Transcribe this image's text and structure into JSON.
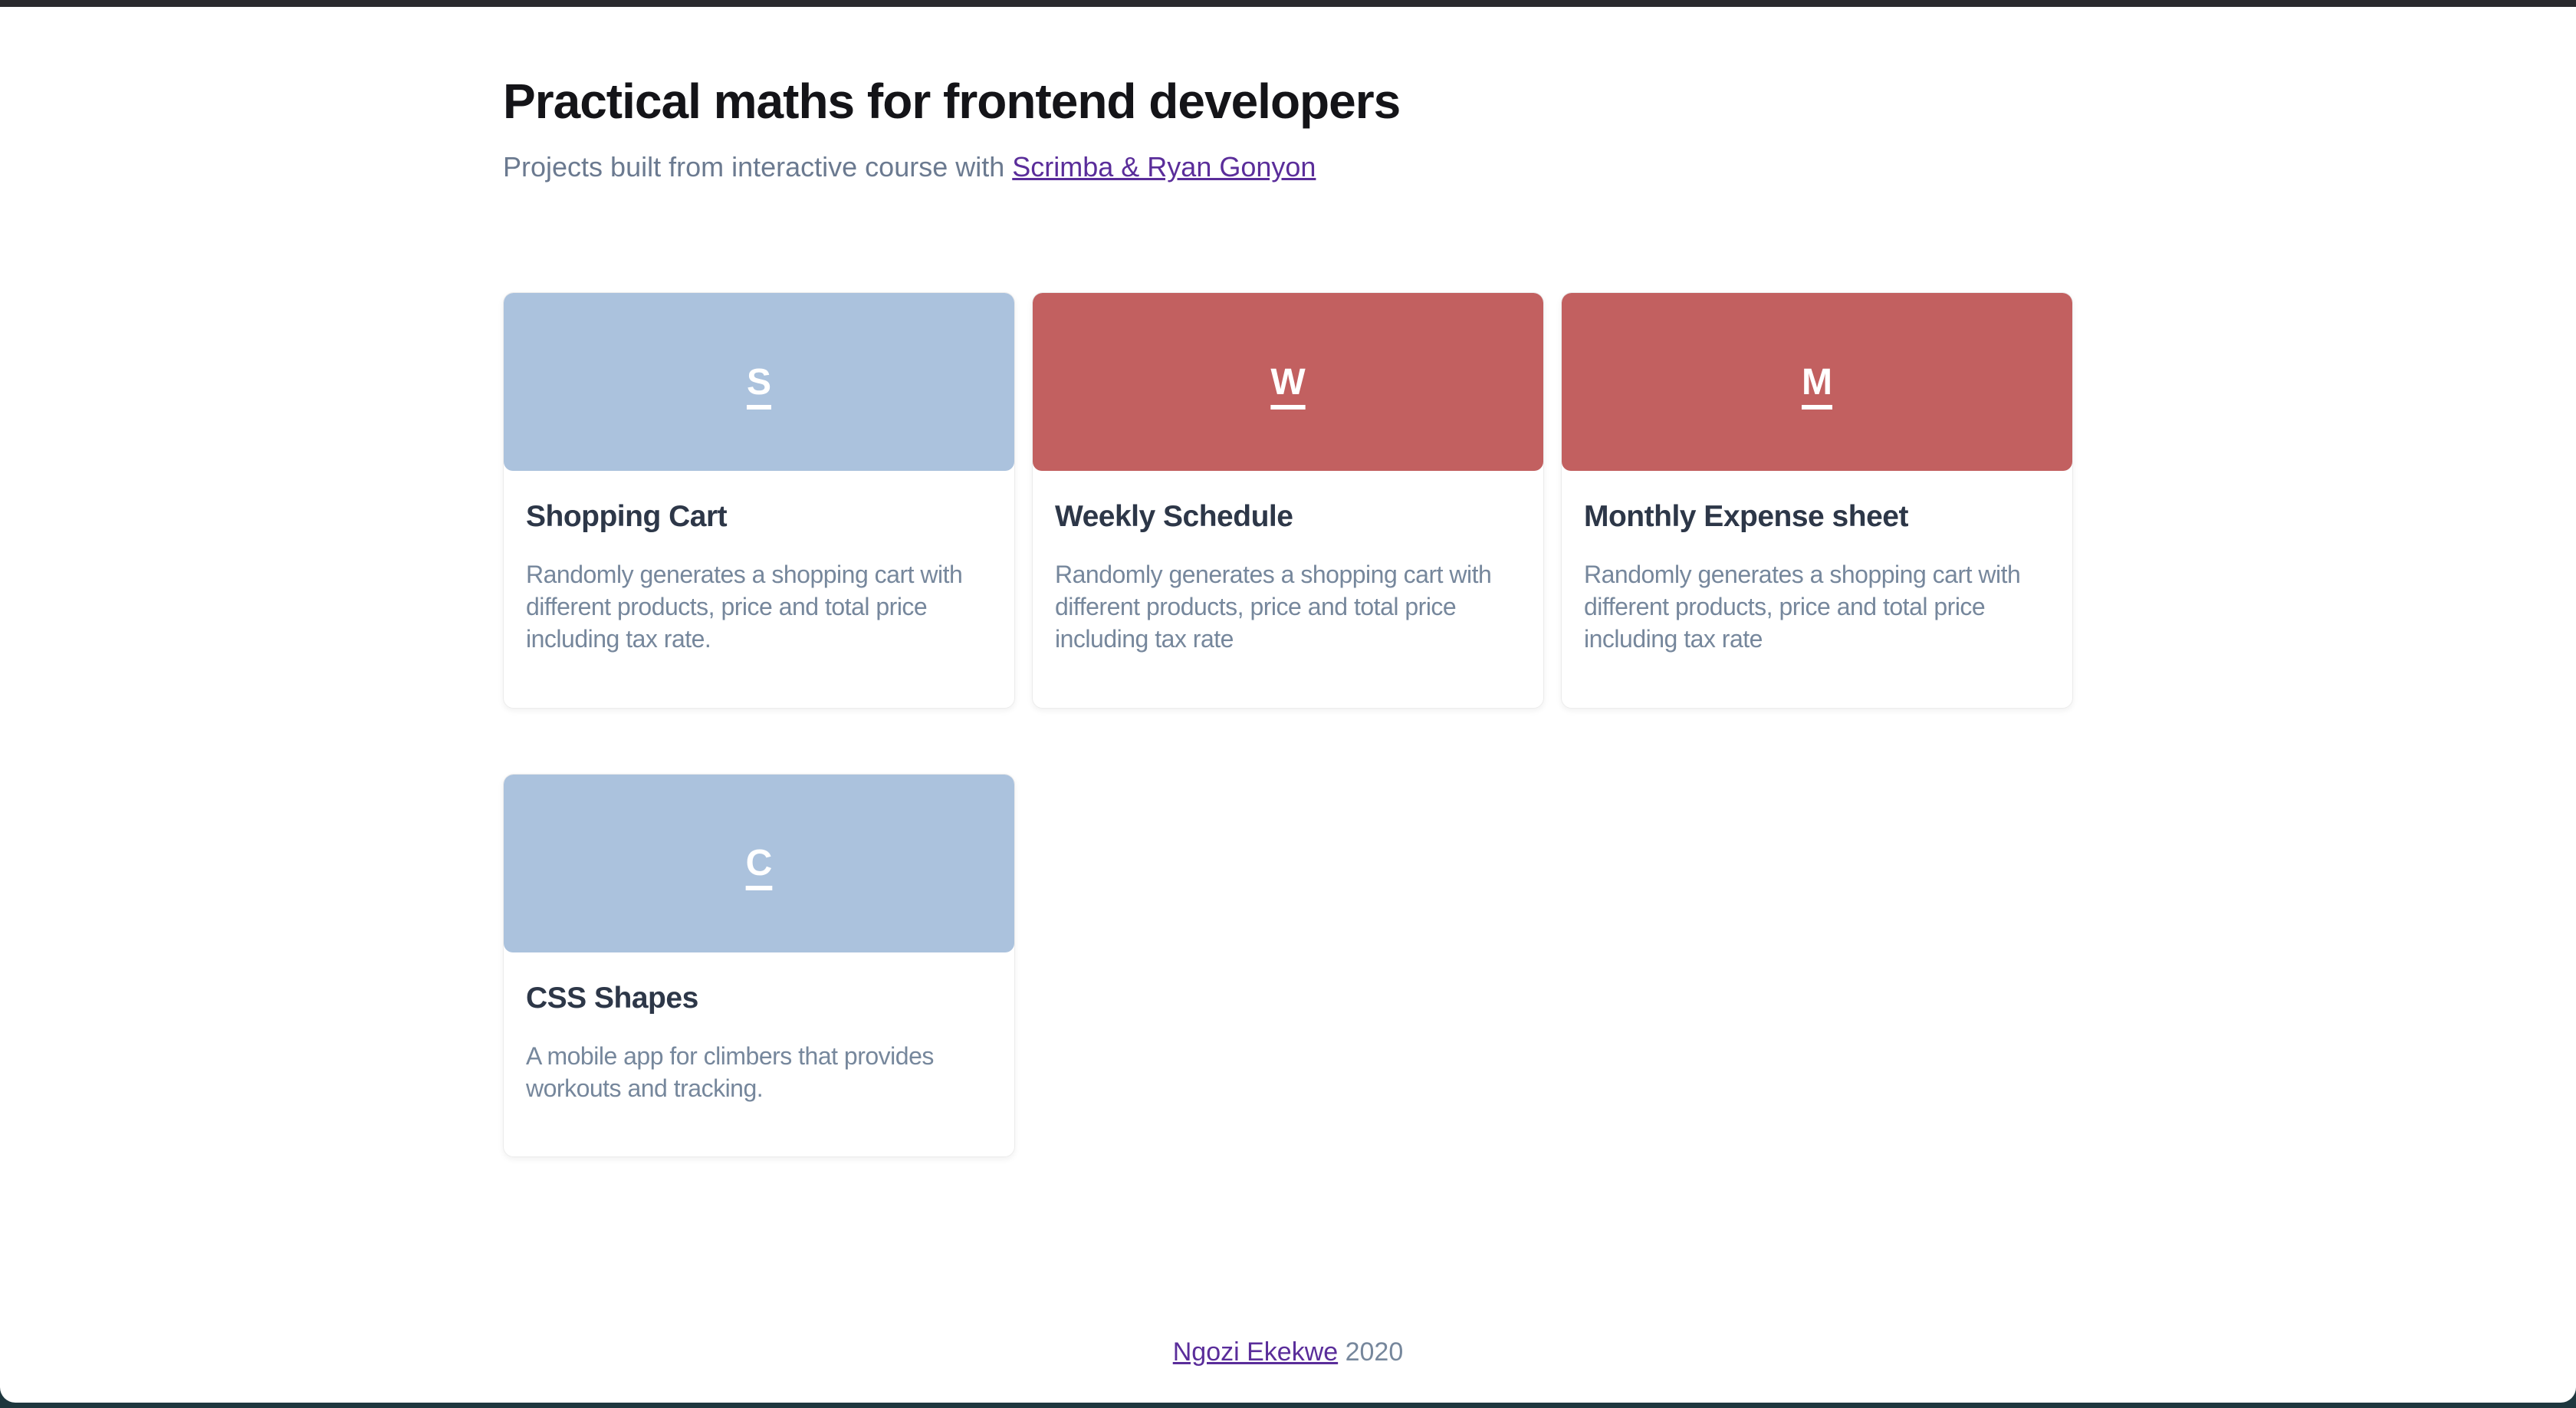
{
  "header": {
    "title": "Practical maths for frontend developers",
    "subtitle_prefix": "Projects built from interactive course with ",
    "subtitle_link_label": "Scrimba & Ryan Gonyon"
  },
  "colors": {
    "blue": "#abc2dd",
    "red": "#c26060",
    "link_purple": "#5a2d9a",
    "chrome_top": "#2a2a2e",
    "chrome_bottom": "#1e373e",
    "heading_text": "#2d3748",
    "body_text": "#76879c"
  },
  "cards": [
    {
      "letter": "S",
      "tone": "blue",
      "title": "Shopping Cart",
      "description": "Randomly generates a shopping cart with different products, price and total price including tax rate."
    },
    {
      "letter": "W",
      "tone": "red",
      "title": "Weekly Schedule",
      "description": "Randomly generates a shopping cart with different products, price and total price including tax rate"
    },
    {
      "letter": "M",
      "tone": "red",
      "title": "Monthly Expense sheet",
      "description": "Randomly generates a shopping cart with different products, price and total price including tax rate"
    },
    {
      "letter": "C",
      "tone": "blue",
      "title": "CSS Shapes",
      "description": "A mobile app for climbers that provides workouts and tracking."
    }
  ],
  "footer": {
    "author_link_label": "Ngozi Ekekwe",
    "year": " 2020"
  }
}
